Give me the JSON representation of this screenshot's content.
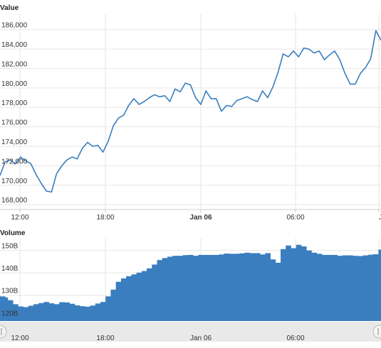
{
  "colors": {
    "line": "#3a7ebf",
    "bar": "#3a7ebf",
    "grid": "#e6e6e6",
    "navigator_bg": "#e9e9e9",
    "handle": "#f4f4f4"
  },
  "panels": {
    "price_title": "Value",
    "volume_title": "Volume"
  },
  "price_axis": {
    "ticks": [
      "186,000",
      "184,000",
      "182,000",
      "180,000",
      "178,000",
      "176,000",
      "174,000",
      "172,000",
      "170,000",
      "168,000"
    ]
  },
  "volume_axis": {
    "ticks": [
      "150B",
      "140B",
      "130B",
      "120B"
    ]
  },
  "time_axis": {
    "ticks": [
      "12:00",
      "18:00",
      "Jan 06",
      "06:00",
      "J"
    ]
  },
  "navigator_axis": {
    "ticks": [
      "12:00",
      "18:00",
      "Jan 06",
      "06:00"
    ]
  },
  "chart_data": [
    {
      "type": "line",
      "title": "Value",
      "x_ticks": [
        "12:00",
        "18:00",
        "Jan 06",
        "06:00"
      ],
      "ylim": [
        167500,
        187000
      ],
      "series": [
        {
          "values": [
            171000,
            172400,
            172600,
            172200,
            172900,
            172500,
            172200,
            171100,
            170200,
            169400,
            169300,
            171200,
            172000,
            172600,
            172900,
            172700,
            173800,
            174400,
            174000,
            174100,
            173400,
            174500,
            176100,
            176900,
            177200,
            178200,
            178900,
            178300,
            178600,
            179000,
            179300,
            179100,
            179200,
            178600,
            179900,
            179600,
            180500,
            180300,
            179000,
            178300,
            179700,
            178900,
            178900,
            177600,
            178200,
            178100,
            178700,
            178900,
            179100,
            178800,
            178600,
            179700,
            179000,
            180100,
            181600,
            183500,
            183200,
            183800,
            183200,
            184100,
            184000,
            183600,
            183800,
            182900,
            183400,
            183800,
            182900,
            181500,
            180400,
            180400,
            181500,
            182100,
            183000,
            185900,
            184900
          ]
        }
      ]
    },
    {
      "type": "area",
      "title": "Volume",
      "x_ticks": [
        "12:00",
        "18:00",
        "Jan 06",
        "06:00"
      ],
      "ylim": [
        118500,
        154000
      ],
      "series": [
        {
          "values": [
            129500,
            129000,
            127800,
            126000,
            125000,
            124700,
            125300,
            126000,
            126500,
            127000,
            126400,
            126000,
            126900,
            126800,
            126200,
            125500,
            125100,
            124900,
            125400,
            126300,
            127000,
            129500,
            132500,
            136000,
            137500,
            138500,
            139300,
            140100,
            140800,
            142000,
            143700,
            145700,
            146600,
            147200,
            147600,
            147600,
            147900,
            148000,
            147600,
            148000,
            148000,
            148000,
            148000,
            148200,
            148600,
            148500,
            148500,
            148700,
            149000,
            148800,
            148800,
            148200,
            148800,
            146000,
            144500,
            150600,
            152200,
            151000,
            152500,
            151800,
            150000,
            149000,
            148500,
            148000,
            148000,
            148000,
            147600,
            147800,
            147800,
            147600,
            147500,
            147800,
            148100,
            148300,
            150400
          ]
        }
      ]
    }
  ]
}
